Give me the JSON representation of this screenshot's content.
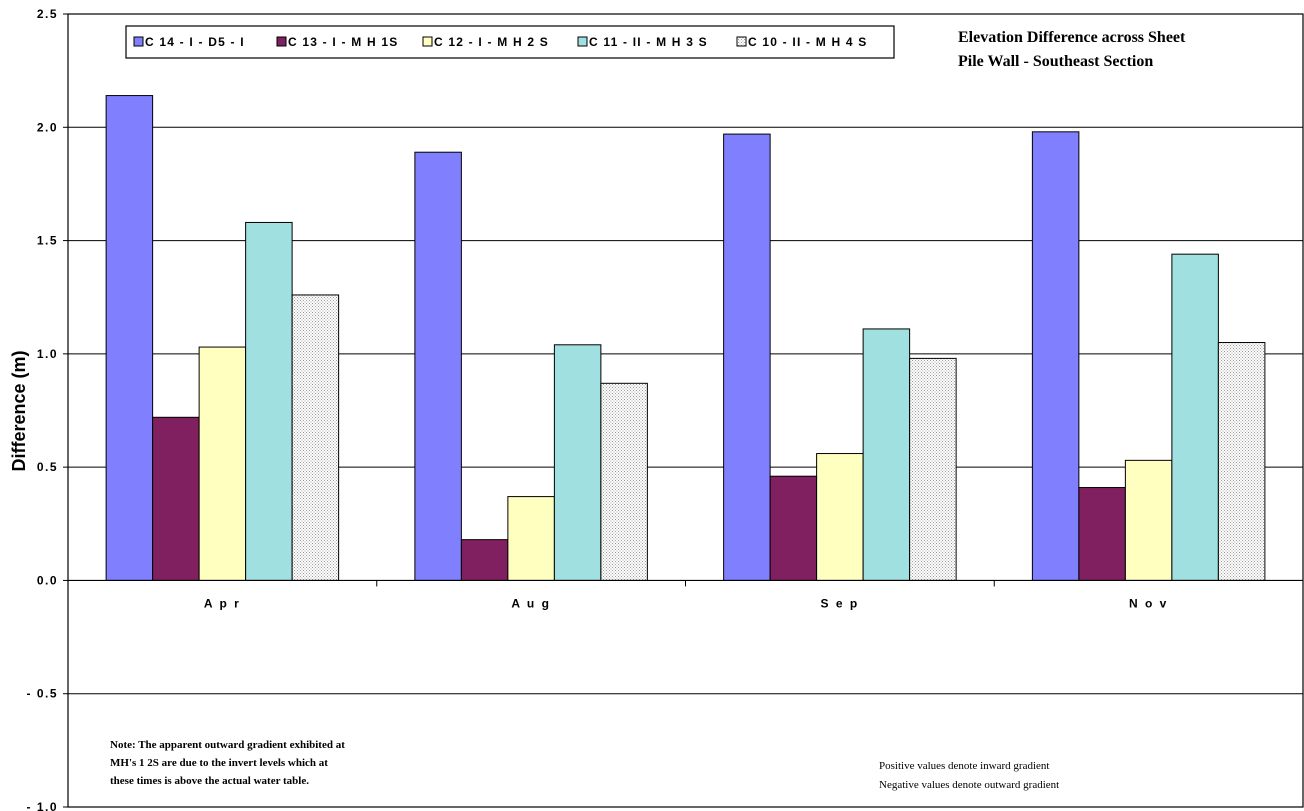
{
  "chart_data": {
    "type": "bar",
    "title": [
      "Elevation Difference across Sheet",
      "Pile Wall - Southeast Section"
    ],
    "xlabel": "",
    "ylabel": "Difference (m)",
    "ylim": [
      -1.0,
      2.5
    ],
    "yticks": [
      2.5,
      2.0,
      1.5,
      1.0,
      0.5,
      0.0,
      -0.5,
      -1.0
    ],
    "ytick_labels": [
      "2.5",
      "2.0",
      "1.5",
      "1.0",
      "0.5",
      "0.0",
      "- 0.5",
      "- 1.0"
    ],
    "grid": true,
    "legend_position": "top-left",
    "categories": [
      "A p r",
      "A u g",
      "S e p",
      "N o v"
    ],
    "series": [
      {
        "name": "C 14 - I  -  D5 - I",
        "color": "#8080ff",
        "pattern": "solid",
        "values": [
          2.14,
          1.89,
          1.97,
          1.98
        ]
      },
      {
        "name": "C 13 - I  -  M H  1S",
        "color": "#802060",
        "pattern": "solid",
        "values": [
          0.72,
          0.18,
          0.46,
          0.41
        ]
      },
      {
        "name": "C 12 - I  -  M H  2 S",
        "color": "#ffffc0",
        "pattern": "solid",
        "values": [
          1.03,
          0.37,
          0.56,
          0.53
        ]
      },
      {
        "name": "C 11 - II  -  M H  3 S",
        "color": "#a0e0e0",
        "pattern": "solid",
        "values": [
          1.58,
          1.04,
          1.11,
          1.44
        ]
      },
      {
        "name": "C 10 - II  -  M H  4 S",
        "color": "#ffffff",
        "pattern": "dotted",
        "values": [
          1.26,
          0.87,
          0.98,
          1.05
        ]
      }
    ],
    "annotations": {
      "note": [
        "Note: The apparent outward gradient exhibited at",
        "MH's 1  2S are due to the invert levels which at",
        "these times is above the actual water table."
      ],
      "sign": [
        "Positive values denote inward gradient",
        "Negative values denote outward gradient"
      ]
    }
  }
}
